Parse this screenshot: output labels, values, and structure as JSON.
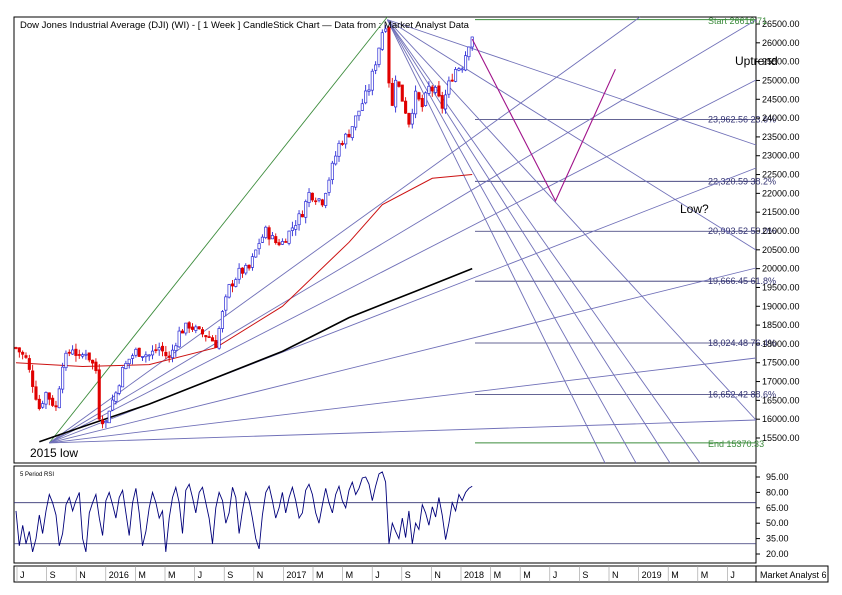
{
  "header": {
    "title": "Dow Jones Industrial Average (DJI) (WI) -  [ 1 Week ] CandleStick Chart — Data from : Market Analyst Data"
  },
  "watermark": "Market Analyst 6",
  "colors": {
    "up": "#2b2bd6",
    "down": "#e00000",
    "fan": "#7070b8",
    "green": "#3c8c3c",
    "ma50": "#cc1111",
    "ma200": "#000000",
    "projection": "#a0128a",
    "axis": "#000000",
    "rsi": "#00007a"
  },
  "chart_data": [
    {
      "type": "candlestick",
      "title": "Dow Jones Industrial Average (DJI) (WI) - [ 1 Week ] CandleStick Chart",
      "timeframe": "1 Week",
      "yaxis": {
        "range": [
          15000,
          26800
        ],
        "ticks": [
          15500,
          16000,
          16500,
          17000,
          17500,
          18000,
          18500,
          19000,
          19500,
          20000,
          20500,
          21000,
          21500,
          22000,
          22500,
          23000,
          23500,
          24000,
          24500,
          25000,
          25500,
          26000,
          26500
        ]
      },
      "xaxis": {
        "labels": [
          "J",
          "S",
          "N",
          "2016",
          "M",
          "M",
          "J",
          "S",
          "N",
          "2017",
          "M",
          "M",
          "J",
          "S",
          "N",
          "2018",
          "M",
          "M",
          "J",
          "S",
          "N",
          "2019",
          "M",
          "M",
          "J"
        ]
      },
      "price_path": [
        {
          "t": 0,
          "v": 17900
        },
        {
          "t": 3,
          "v": 17600
        },
        {
          "t": 7,
          "v": 16300
        },
        {
          "t": 9,
          "v": 16700
        },
        {
          "t": 12,
          "v": 16300
        },
        {
          "t": 14,
          "v": 17500
        },
        {
          "t": 17,
          "v": 17900
        },
        {
          "t": 19,
          "v": 17600
        },
        {
          "t": 21,
          "v": 17800
        },
        {
          "t": 24,
          "v": 17300
        },
        {
          "t": 25,
          "v": 16100
        },
        {
          "t": 27,
          "v": 15900
        },
        {
          "t": 28,
          "v": 16300
        },
        {
          "t": 30,
          "v": 16700
        },
        {
          "t": 32,
          "v": 17300
        },
        {
          "t": 34,
          "v": 17600
        },
        {
          "t": 36,
          "v": 17800
        },
        {
          "t": 40,
          "v": 17700
        },
        {
          "t": 43,
          "v": 17900
        },
        {
          "t": 46,
          "v": 17600
        },
        {
          "t": 49,
          "v": 18300
        },
        {
          "t": 52,
          "v": 18500
        },
        {
          "t": 55,
          "v": 18300
        },
        {
          "t": 58,
          "v": 18200
        },
        {
          "t": 60,
          "v": 18000
        },
        {
          "t": 62,
          "v": 18800
        },
        {
          "t": 64,
          "v": 19500
        },
        {
          "t": 67,
          "v": 19900
        },
        {
          "t": 70,
          "v": 20000
        },
        {
          "t": 73,
          "v": 20700
        },
        {
          "t": 75,
          "v": 21000
        },
        {
          "t": 78,
          "v": 20700
        },
        {
          "t": 80,
          "v": 20700
        },
        {
          "t": 83,
          "v": 21100
        },
        {
          "t": 86,
          "v": 21500
        },
        {
          "t": 88,
          "v": 22000
        },
        {
          "t": 90,
          "v": 21900
        },
        {
          "t": 92,
          "v": 21800
        },
        {
          "t": 94,
          "v": 22400
        },
        {
          "t": 97,
          "v": 23300
        },
        {
          "t": 100,
          "v": 23600
        },
        {
          "t": 103,
          "v": 24200
        },
        {
          "t": 106,
          "v": 24800
        },
        {
          "t": 108,
          "v": 25500
        },
        {
          "t": 110,
          "v": 26300
        },
        {
          "t": 111,
          "v": 26500
        },
        {
          "t": 112,
          "v": 25000
        },
        {
          "t": 113,
          "v": 24300
        },
        {
          "t": 114,
          "v": 25100
        },
        {
          "t": 116,
          "v": 24500
        },
        {
          "t": 118,
          "v": 23900
        },
        {
          "t": 120,
          "v": 24600
        },
        {
          "t": 122,
          "v": 24300
        },
        {
          "t": 124,
          "v": 24800
        },
        {
          "t": 126,
          "v": 24700
        },
        {
          "t": 128,
          "v": 24300
        },
        {
          "t": 130,
          "v": 24900
        },
        {
          "t": 132,
          "v": 25300
        },
        {
          "t": 134,
          "v": 25400
        },
        {
          "t": 136,
          "v": 26000
        },
        {
          "t": 137,
          "v": 26200
        }
      ],
      "moving_averages": [
        {
          "name": "50-week MA",
          "points": [
            {
              "t": 0,
              "v": 17500
            },
            {
              "t": 20,
              "v": 17400
            },
            {
              "t": 40,
              "v": 17450
            },
            {
              "t": 60,
              "v": 17900
            },
            {
              "t": 80,
              "v": 19000
            },
            {
              "t": 100,
              "v": 20700
            },
            {
              "t": 110,
              "v": 21700
            },
            {
              "t": 125,
              "v": 22400
            },
            {
              "t": 137,
              "v": 22500
            }
          ]
        },
        {
          "name": "200-week MA",
          "points": [
            {
              "t": 7,
              "v": 15400
            },
            {
              "t": 20,
              "v": 15800
            },
            {
              "t": 40,
              "v": 16400
            },
            {
              "t": 60,
              "v": 17100
            },
            {
              "t": 80,
              "v": 17800
            },
            {
              "t": 100,
              "v": 18700
            },
            {
              "t": 120,
              "v": 19400
            },
            {
              "t": 137,
              "v": 20000
            }
          ]
        }
      ],
      "fibonacci": {
        "start": {
          "label": "Start",
          "value": 26616.71
        },
        "end": {
          "label": "End",
          "value": 15370.33
        },
        "levels": [
          {
            "price": 23962.56,
            "pct": 23.6,
            "text": "23,962.56 23.6%"
          },
          {
            "price": 22320.59,
            "pct": 38.2,
            "text": "22,320.59 38.2%"
          },
          {
            "price": 20993.52,
            "pct": 50.0,
            "text": "20,993.52 50.0%"
          },
          {
            "price": 19666.45,
            "pct": 61.8,
            "text": "19,666.45 61.8%"
          },
          {
            "price": 18024.48,
            "pct": 76.4,
            "text": "18,024.48 76.4%"
          },
          {
            "price": 16652.42,
            "pct": 88.6,
            "text": "16,652.42 88.6%"
          }
        ]
      },
      "annotations": {
        "low_2015": "2015 low",
        "low_question": "Low?",
        "uptrend": "Uptrend"
      },
      "projection": [
        {
          "t": 137,
          "v": 26100
        },
        {
          "t": 162,
          "v": 21800
        },
        {
          "t": 180,
          "v": 25300
        }
      ]
    },
    {
      "type": "line",
      "title": "5 Period RSI",
      "yaxis": {
        "range": [
          15,
          100
        ],
        "ticks": [
          20.0,
          35.0,
          50.0,
          65.0,
          80.0,
          95.0
        ]
      },
      "reference_lines": [
        70,
        30
      ],
      "values": [
        62,
        28,
        48,
        30,
        42,
        22,
        35,
        58,
        40,
        62,
        78,
        70,
        58,
        28,
        40,
        68,
        75,
        62,
        72,
        80,
        35,
        22,
        60,
        70,
        78,
        55,
        38,
        72,
        80,
        68,
        55,
        75,
        82,
        60,
        38,
        70,
        84,
        60,
        28,
        42,
        65,
        80,
        70,
        55,
        62,
        22,
        55,
        75,
        85,
        70,
        40,
        82,
        88,
        75,
        60,
        80,
        85,
        70,
        55,
        30,
        65,
        80,
        72,
        50,
        60,
        85,
        75,
        40,
        62,
        80,
        72,
        55,
        35,
        25,
        58,
        80,
        86,
        72,
        55,
        65,
        80,
        60,
        75,
        85,
        72,
        55,
        60,
        82,
        88,
        78,
        60,
        50,
        68,
        84,
        70,
        60,
        78,
        86,
        72,
        65,
        82,
        90,
        78,
        84,
        94,
        95,
        88,
        72,
        86,
        98,
        100,
        90,
        30,
        50,
        42,
        35,
        55,
        36,
        62,
        30,
        50,
        44,
        68,
        60,
        48,
        66,
        56,
        75,
        58,
        34,
        50,
        70,
        62,
        78,
        72,
        80,
        84,
        86
      ]
    }
  ]
}
